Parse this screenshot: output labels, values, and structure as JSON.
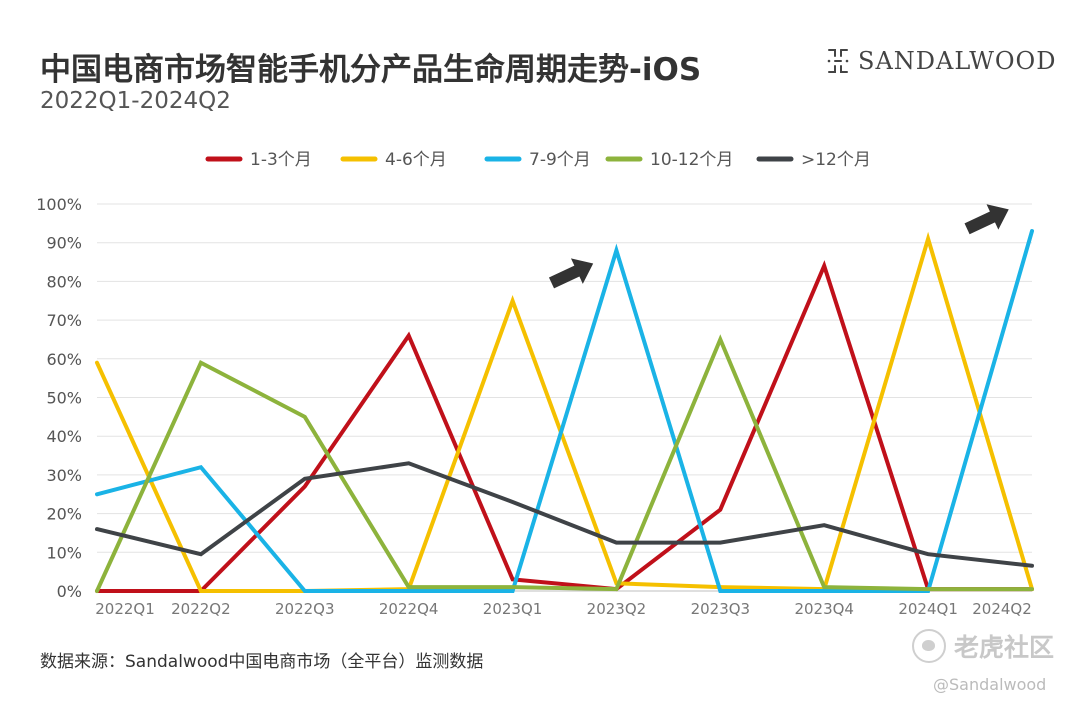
{
  "header": {
    "title": "中国电商市场智能手机分产品生命周期走势-iOS",
    "subtitle": "2022Q1-2024Q2",
    "brand": "SANDALWOOD"
  },
  "footer": {
    "source": "数据来源：Sandalwood中国电商市场（全平台）监测数据",
    "watermark": "老虎社区",
    "handle": "@Sandalwood"
  },
  "chart_data": {
    "type": "line",
    "title": "中国电商市场智能手机分产品生命周期走势-iOS",
    "subtitle": "2022Q1-2024Q2",
    "categories": [
      "2022Q1",
      "2022Q2",
      "2022Q3",
      "2022Q4",
      "2023Q1",
      "2023Q2",
      "2023Q3",
      "2023Q4",
      "2024Q1",
      "2024Q2"
    ],
    "ylim": [
      0,
      100
    ],
    "yticks": [
      "0%",
      "10%",
      "20%",
      "30%",
      "40%",
      "50%",
      "60%",
      "70%",
      "80%",
      "90%",
      "100%"
    ],
    "grid": true,
    "legend_position": "top",
    "series": [
      {
        "name": "1-3个月",
        "color": "#c0101a",
        "values": [
          0,
          0,
          27,
          66,
          3,
          0.5,
          21,
          84,
          0.5,
          0.5
        ]
      },
      {
        "name": "4-6个月",
        "color": "#f5c000",
        "values": [
          59,
          0,
          0,
          0.5,
          75,
          2,
          1,
          0.5,
          91,
          0.5
        ]
      },
      {
        "name": "7-9个月",
        "color": "#1ab3e6",
        "values": [
          25,
          32,
          0,
          0,
          0,
          88,
          0,
          0,
          0,
          93
        ]
      },
      {
        "name": "10-12个月",
        "color": "#8db33c",
        "values": [
          0,
          59,
          45,
          1,
          1,
          0.5,
          65,
          1,
          0.5,
          0.5
        ]
      },
      {
        "name": ">12个月",
        "color": "#3f4347",
        "values": [
          16,
          9.5,
          29,
          33,
          23,
          12.5,
          12.5,
          17,
          9.5,
          6.5
        ]
      }
    ],
    "annotations": [
      {
        "type": "arrow",
        "near_category": "2023Q2",
        "near_value": 82
      },
      {
        "type": "arrow",
        "near_category": "2024Q2",
        "near_value": 96
      }
    ]
  }
}
